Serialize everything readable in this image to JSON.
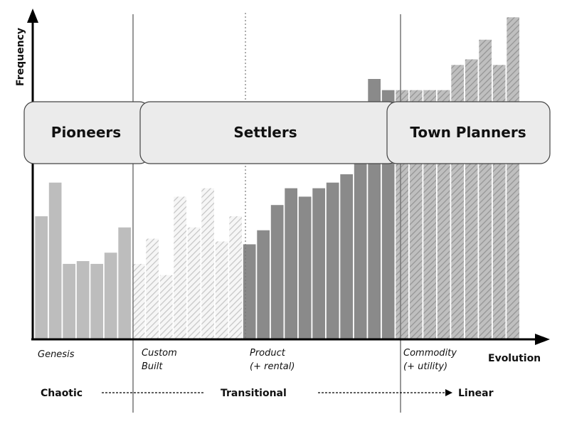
{
  "axes": {
    "y_label": "Frequency",
    "x_label": "Evolution"
  },
  "stages": {
    "genesis": "Genesis",
    "custom": [
      "Custom",
      "Built"
    ],
    "product": [
      "Product",
      "(+ rental)"
    ],
    "commodity": [
      "Commodity",
      "(+ utility)"
    ]
  },
  "characteristics": {
    "chaotic": "Chaotic",
    "transitional": "Transitional",
    "linear": "Linear"
  },
  "roles": {
    "pioneers": "Pioneers",
    "settlers": "Settlers",
    "town_planners": "Town Planners"
  },
  "colors": {
    "genesis": "#bdbdbd",
    "custom_hatch": "#cfcfcf",
    "product": "#8a8a8a",
    "commodity_hatch": "#a8a8a8",
    "box_fill": "#ebebeb"
  },
  "chart_data": {
    "type": "bar",
    "y_max": 100,
    "series": [
      {
        "stage": "genesis",
        "values": [
          44,
          56,
          27,
          28,
          27,
          31,
          40
        ]
      },
      {
        "stage": "custom",
        "values": [
          27,
          36,
          23,
          51,
          40,
          54,
          35,
          44
        ]
      },
      {
        "stage": "product",
        "values": [
          34,
          39,
          48,
          54,
          51,
          54,
          56,
          59,
          63,
          93,
          89
        ]
      },
      {
        "stage": "commodity",
        "values": [
          89,
          89,
          89,
          89,
          98,
          100,
          107,
          98,
          115
        ]
      }
    ]
  }
}
